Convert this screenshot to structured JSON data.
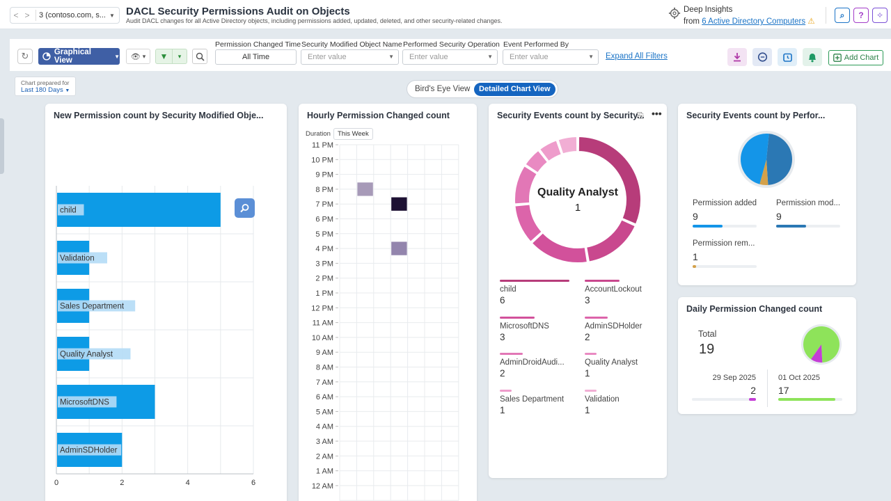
{
  "header": {
    "nav_prev": "<",
    "nav_next": ">",
    "selector_text": "3 (contoso.com, s...",
    "title": "DACL Security Permissions Audit on Objects",
    "subtitle": "Audit DACL changes for all Active Directory objects, including permissions added, updated, deleted, and other security-related changes.",
    "deep_insights_label": "Deep Insights",
    "deep_insights_from": "from",
    "deep_insights_link": "6 Active Directory Computers",
    "search_glyph": "⌕",
    "help_glyph": "?",
    "bulb_glyph": "✧"
  },
  "filters": {
    "graphical_view_label": "Graphical View",
    "permission_time": {
      "label": "Permission Changed Time",
      "value": "All Time"
    },
    "modified_object": {
      "label": "Security Modified Object Name",
      "placeholder": "Enter value"
    },
    "performed_operation": {
      "label": "Performed Security Operation",
      "placeholder": "Enter value"
    },
    "performed_by": {
      "label": "Event Performed By",
      "placeholder": "Enter value"
    },
    "expand_all": "Expand All Filters",
    "add_chart": "Add Chart"
  },
  "prepared": {
    "label": "Chart prepared for",
    "value": "Last 180 Days"
  },
  "view_toggle": {
    "option1": "Bird's Eye View",
    "option2": "Detailed Chart View"
  },
  "cards": {
    "new_permission": {
      "title": "New Permission count by Security Modified Obje..."
    },
    "hourly": {
      "title": "Hourly Permission Changed count",
      "duration_label": "Duration",
      "duration_value": "This Week"
    },
    "security_events": {
      "title": "Security Events count by Security...",
      "center_label": "Quality Analyst",
      "center_value": "1",
      "legend": [
        {
          "name": "child",
          "value": "6",
          "color": "#b73c7a"
        },
        {
          "name": "AccountLockout",
          "value": "3",
          "color": "#c9488e"
        },
        {
          "name": "MicrosoftDNS",
          "value": "3",
          "color": "#d2519b"
        },
        {
          "name": "AdminSDHolder",
          "value": "2",
          "color": "#dc64aa"
        },
        {
          "name": "AdminDroidAudi...",
          "value": "2",
          "color": "#e277b6"
        },
        {
          "name": "Quality Analyst",
          "value": "1",
          "color": "#e98ac2"
        },
        {
          "name": "Sales Department",
          "value": "1",
          "color": "#ee9ccb"
        },
        {
          "name": "Validation",
          "value": "1",
          "color": "#f1aed4"
        }
      ]
    },
    "performed": {
      "title": "Security Events count by Perfor...",
      "items": [
        {
          "name": "Permission added",
          "value": "9",
          "color": "#1495e8",
          "pct": 0.47
        },
        {
          "name": "Permission mod...",
          "value": "9",
          "color": "#2b78b4",
          "pct": 0.47
        },
        {
          "name": "Permission rem...",
          "value": "1",
          "color": "#d4a14a",
          "pct": 0.05
        }
      ]
    },
    "daily": {
      "title": "Daily Permission Changed count",
      "total_label": "Total",
      "total_value": "19",
      "items": [
        {
          "date": "29 Sep 2025",
          "value": "2",
          "color": "#c43ed6",
          "pct": 0.105
        },
        {
          "date": "01 Oct 2025",
          "value": "17",
          "color": "#8ee35a",
          "pct": 0.895
        }
      ]
    }
  },
  "chart_data": [
    {
      "type": "bar",
      "orientation": "horizontal",
      "title": "New Permission count by Security Modified Obje...",
      "categories": [
        "child",
        "Validation",
        "Sales Department",
        "Quality Analyst",
        "MicrosoftDNS",
        "AdminSDHolder"
      ],
      "values": [
        5,
        1,
        1,
        1,
        3,
        2
      ],
      "xlim": [
        0,
        6
      ],
      "xticks": [
        "0",
        "2",
        "4",
        "6"
      ],
      "color": "#0d9be6"
    },
    {
      "type": "heatmap",
      "title": "Hourly Permission Changed count",
      "y_labels": [
        "11 PM",
        "10 PM",
        "9 PM",
        "8 PM",
        "7 PM",
        "6 PM",
        "5 PM",
        "4 PM",
        "3 PM",
        "2 PM",
        "1 PM",
        "12 PM",
        "11 AM",
        "10 AM",
        "9 AM",
        "8 AM",
        "7 AM",
        "6 AM",
        "5 AM",
        "4 AM",
        "3 AM",
        "2 AM",
        "1 AM",
        "12 AM"
      ],
      "columns": 7,
      "cells": [
        {
          "hour": "8 PM",
          "day": 1,
          "value": 1,
          "color": "#a79ab8"
        },
        {
          "hour": "7 PM",
          "day": 3,
          "value": 17,
          "color": "#1d1133"
        },
        {
          "hour": "4 PM",
          "day": 3,
          "value": 1,
          "color": "#9385ad"
        }
      ]
    },
    {
      "type": "pie",
      "variant": "donut",
      "title": "Security Events count by Security...",
      "categories": [
        "child",
        "AccountLockout",
        "MicrosoftDNS",
        "AdminSDHolder",
        "AdminDroidAudi...",
        "Quality Analyst",
        "Sales Department",
        "Validation"
      ],
      "values": [
        6,
        3,
        3,
        2,
        2,
        1,
        1,
        1
      ]
    },
    {
      "type": "pie",
      "title": "Security Events count by Perfor...",
      "categories": [
        "Permission added",
        "Permission mod...",
        "Permission rem..."
      ],
      "values": [
        9,
        9,
        1
      ]
    },
    {
      "type": "pie",
      "title": "Daily Permission Changed count",
      "categories": [
        "29 Sep 2025",
        "01 Oct 2025"
      ],
      "values": [
        2,
        17
      ]
    }
  ]
}
